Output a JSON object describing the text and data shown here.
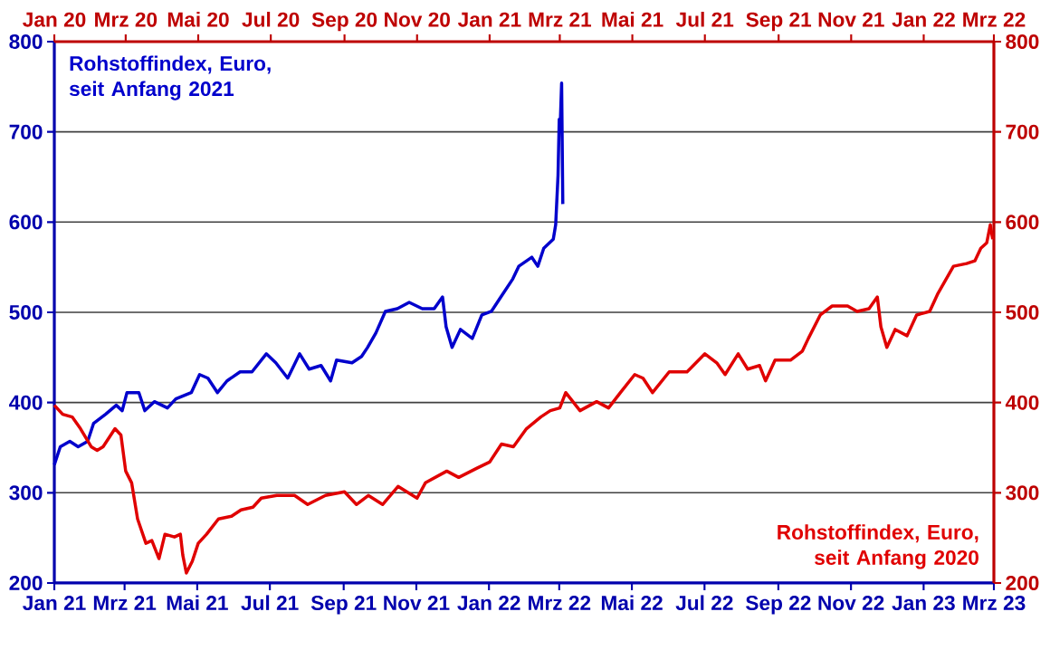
{
  "chart_data": {
    "type": "line",
    "xlim": [
      "2021-01-01",
      "2023-03-01"
    ],
    "xticks": [
      {
        "value": "2021-01-01",
        "label": "Jan 21"
      },
      {
        "value": "2021-03-01",
        "label": "Mrz 21"
      },
      {
        "value": "2021-05-01",
        "label": "Mai 21"
      },
      {
        "value": "2021-07-01",
        "label": "Jul 21"
      },
      {
        "value": "2021-09-01",
        "label": "Sep 21"
      },
      {
        "value": "2021-11-01",
        "label": "Nov 21"
      },
      {
        "value": "2022-01-01",
        "label": "Jan 22"
      },
      {
        "value": "2022-03-01",
        "label": "Mrz 22"
      },
      {
        "value": "2022-05-01",
        "label": "Mai 22"
      },
      {
        "value": "2022-07-01",
        "label": "Jul 22"
      },
      {
        "value": "2022-09-01",
        "label": "Sep 22"
      },
      {
        "value": "2022-11-01",
        "label": "Nov 22"
      },
      {
        "value": "2023-01-01",
        "label": "Jan 23"
      },
      {
        "value": "2023-03-01",
        "label": "Mrz 23"
      }
    ],
    "x2lim": [
      "2020-01-01",
      "2022-03-01"
    ],
    "x2ticks": [
      {
        "value": "2020-01-01",
        "label": "Jan 20"
      },
      {
        "value": "2020-03-01",
        "label": "Mrz 20"
      },
      {
        "value": "2020-05-01",
        "label": "Mai 20"
      },
      {
        "value": "2020-07-01",
        "label": "Jul 20"
      },
      {
        "value": "2020-09-01",
        "label": "Sep 20"
      },
      {
        "value": "2020-11-01",
        "label": "Nov 20"
      },
      {
        "value": "2021-01-01",
        "label": "Jan 21"
      },
      {
        "value": "2021-03-01",
        "label": "Mrz 21"
      },
      {
        "value": "2021-05-01",
        "label": "Mai 21"
      },
      {
        "value": "2021-07-01",
        "label": "Jul 21"
      },
      {
        "value": "2021-09-01",
        "label": "Sep 21"
      },
      {
        "value": "2021-11-01",
        "label": "Nov 21"
      },
      {
        "value": "2022-01-01",
        "label": "Jan 22"
      },
      {
        "value": "2022-03-01",
        "label": "Mrz 22"
      }
    ],
    "ylim": [
      200,
      800
    ],
    "yticks": [
      200,
      300,
      400,
      500,
      600,
      700,
      800
    ],
    "y2lim": [
      200,
      800
    ],
    "y2ticks": [
      200,
      300,
      400,
      500,
      600,
      700,
      800
    ],
    "grid": "y",
    "legend": false,
    "marker": "none",
    "line_style": "solid",
    "series": [
      {
        "name": "Rohstoffindex, Euro, seit Anfang 2021",
        "color": "#0000cc",
        "x": [
          "2021-01-01",
          "2021-01-06",
          "2021-01-14",
          "2021-01-21",
          "2021-01-29",
          "2021-02-03",
          "2021-02-13",
          "2021-02-22",
          "2021-02-27",
          "2021-03-03",
          "2021-03-13",
          "2021-03-18",
          "2021-03-26",
          "2021-04-06",
          "2021-04-13",
          "2021-04-26",
          "2021-05-03",
          "2021-05-10",
          "2021-05-18",
          "2021-05-26",
          "2021-06-06",
          "2021-06-16",
          "2021-06-28",
          "2021-07-06",
          "2021-07-16",
          "2021-07-26",
          "2021-08-03",
          "2021-08-13",
          "2021-08-21",
          "2021-08-26",
          "2021-09-08",
          "2021-09-16",
          "2021-09-21",
          "2021-09-28",
          "2021-10-06",
          "2021-10-16",
          "2021-10-26",
          "2021-11-06",
          "2021-11-16",
          "2021-11-23",
          "2021-11-26",
          "2021-12-01",
          "2021-12-08",
          "2021-12-18",
          "2021-12-26",
          "2022-01-03",
          "2022-01-11",
          "2022-01-21",
          "2022-01-26",
          "2022-02-06",
          "2022-02-11",
          "2022-02-16",
          "2022-02-24",
          "2022-02-26",
          "2022-02-28",
          "2022-03-01",
          "2022-03-02",
          "2022-03-03",
          "2022-03-04"
        ],
        "values": [
          331,
          351,
          357,
          351,
          357,
          377,
          387,
          397,
          391,
          411,
          411,
          391,
          401,
          394,
          404,
          411,
          431,
          427,
          411,
          424,
          434,
          434,
          454,
          444,
          427,
          454,
          437,
          441,
          424,
          447,
          444,
          451,
          461,
          477,
          501,
          504,
          511,
          504,
          504,
          517,
          484,
          461,
          481,
          471,
          497,
          501,
          517,
          537,
          551,
          561,
          551,
          571,
          581,
          597,
          652,
          714,
          714,
          754,
          620
        ]
      },
      {
        "name": "Rohstoffindex, Euro, seit Anfang 2020",
        "color": "#e00000",
        "axis": "x2",
        "x": [
          "2020-01-01",
          "2020-01-08",
          "2020-01-16",
          "2020-01-23",
          "2020-02-01",
          "2020-02-06",
          "2020-02-11",
          "2020-02-21",
          "2020-02-26",
          "2020-03-01",
          "2020-03-06",
          "2020-03-11",
          "2020-03-18",
          "2020-03-23",
          "2020-03-29",
          "2020-04-03",
          "2020-04-11",
          "2020-04-16",
          "2020-04-18",
          "2020-04-21",
          "2020-04-26",
          "2020-05-01",
          "2020-05-08",
          "2020-05-18",
          "2020-05-29",
          "2020-06-06",
          "2020-06-16",
          "2020-06-23",
          "2020-07-06",
          "2020-07-21",
          "2020-08-01",
          "2020-08-16",
          "2020-09-01",
          "2020-09-11",
          "2020-09-21",
          "2020-10-03",
          "2020-10-16",
          "2020-11-01",
          "2020-11-08",
          "2020-11-26",
          "2020-12-06",
          "2020-12-21",
          "2021-01-01",
          "2021-01-11",
          "2021-01-21",
          "2021-02-01",
          "2021-02-13",
          "2021-02-21",
          "2021-03-01",
          "2021-03-06",
          "2021-03-18",
          "2021-04-01",
          "2021-04-11",
          "2021-04-21",
          "2021-05-03",
          "2021-05-10",
          "2021-05-18",
          "2021-06-01",
          "2021-06-16",
          "2021-07-01",
          "2021-07-11",
          "2021-07-18",
          "2021-07-29",
          "2021-08-06",
          "2021-08-16",
          "2021-08-21",
          "2021-08-29",
          "2021-09-11",
          "2021-09-21",
          "2021-09-26",
          "2021-10-06",
          "2021-10-16",
          "2021-10-29",
          "2021-11-06",
          "2021-11-16",
          "2021-11-23",
          "2021-11-26",
          "2021-12-01",
          "2021-12-08",
          "2021-12-18",
          "2021-12-26",
          "2022-01-06",
          "2022-01-13",
          "2022-01-26",
          "2022-02-06",
          "2022-02-13",
          "2022-02-18",
          "2022-02-23",
          "2022-02-26",
          "2022-02-28"
        ],
        "values": [
          397,
          387,
          384,
          371,
          351,
          347,
          351,
          371,
          364,
          324,
          311,
          271,
          244,
          247,
          227,
          254,
          251,
          254,
          231,
          211,
          224,
          244,
          254,
          271,
          274,
          281,
          284,
          294,
          297,
          297,
          287,
          297,
          301,
          287,
          297,
          287,
          307,
          294,
          311,
          324,
          317,
          327,
          334,
          354,
          351,
          371,
          384,
          391,
          394,
          411,
          391,
          401,
          394,
          411,
          431,
          427,
          411,
          434,
          434,
          454,
          444,
          431,
          454,
          437,
          441,
          424,
          447,
          447,
          457,
          471,
          497,
          507,
          507,
          501,
          504,
          517,
          484,
          461,
          481,
          474,
          497,
          501,
          521,
          551,
          554,
          557,
          571,
          577,
          597,
          581
        ]
      }
    ]
  }
}
